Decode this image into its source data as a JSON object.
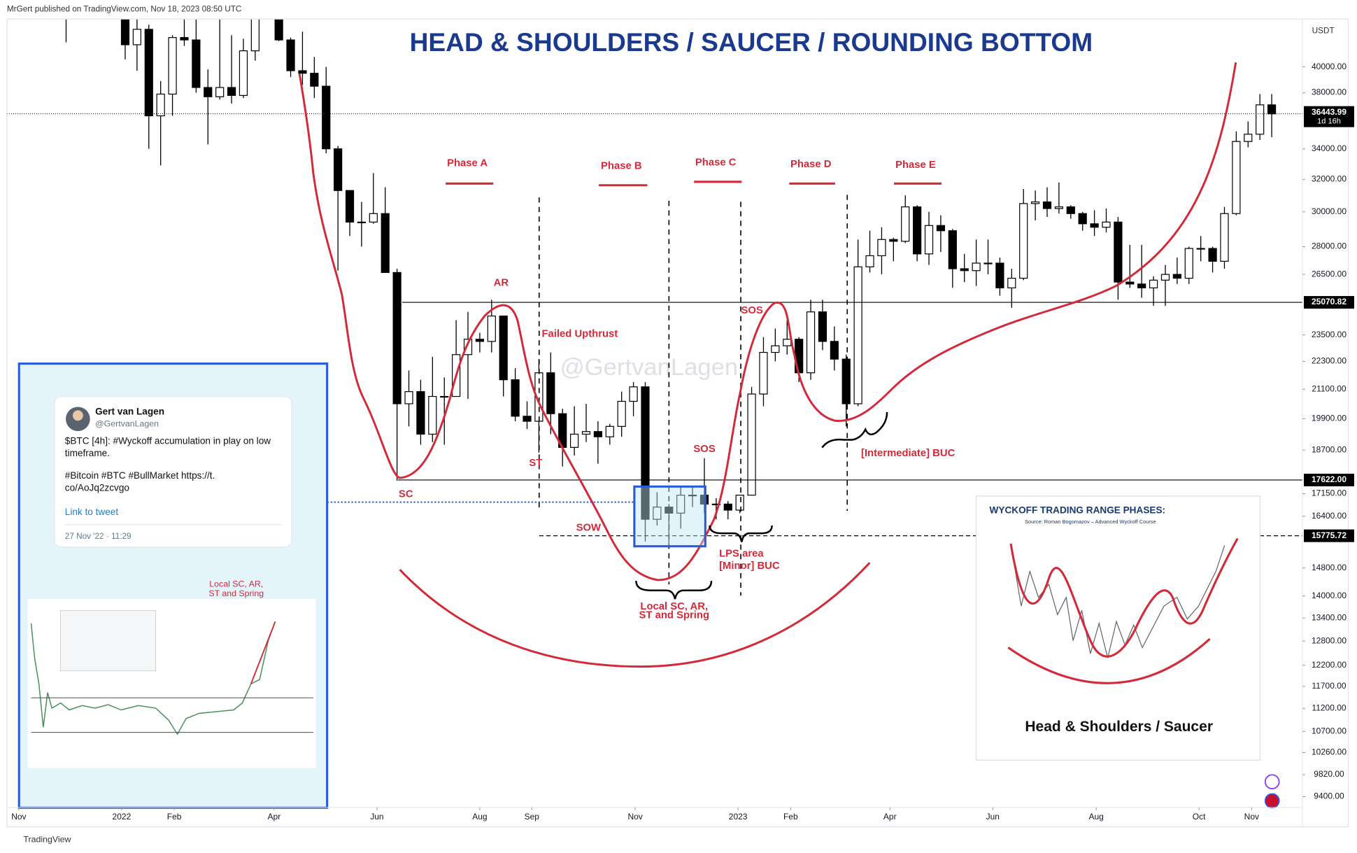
{
  "header": "MrGert published on TradingView.com, Nov 18, 2023 08:50 UTC",
  "footer": "TradingView",
  "chart_data": {
    "type": "candlestick",
    "title": "HEAD & SHOULDERS / SAUCER / ROUNDING BOTTOM",
    "currency": "USDT",
    "log_scale": true,
    "grid": false,
    "up_color": "#ffffff",
    "down_color": "#000000",
    "ylim": [
      9200,
      44000
    ],
    "yticks": [
      {
        "value": 40000,
        "label": "40000.00"
      },
      {
        "value": 38000,
        "label": "38000.00"
      },
      {
        "value": 34000,
        "label": "34000.00"
      },
      {
        "value": 32000,
        "label": "32000.00"
      },
      {
        "value": 30000,
        "label": "30000.00"
      },
      {
        "value": 28000,
        "label": "28000.00"
      },
      {
        "value": 26500,
        "label": "26500.00"
      },
      {
        "value": 23500,
        "label": "23500.00"
      },
      {
        "value": 22300,
        "label": "22300.00"
      },
      {
        "value": 21100,
        "label": "21100.00"
      },
      {
        "value": 19900,
        "label": "19900.00"
      },
      {
        "value": 18700,
        "label": "18700.00"
      },
      {
        "value": 17150,
        "label": "17150.00"
      },
      {
        "value": 16400,
        "label": "16400.00"
      },
      {
        "value": 14800,
        "label": "14800.00"
      },
      {
        "value": 14000,
        "label": "14000.00"
      },
      {
        "value": 13400,
        "label": "13400.00"
      },
      {
        "value": 12800,
        "label": "12800.00"
      },
      {
        "value": 12200,
        "label": "12200.00"
      },
      {
        "value": 11700,
        "label": "11700.00"
      },
      {
        "value": 11200,
        "label": "11200.00"
      },
      {
        "value": 10700,
        "label": "10700.00"
      },
      {
        "value": 10260,
        "label": "10260.00"
      },
      {
        "value": 9820,
        "label": "9820.00"
      },
      {
        "value": 9400,
        "label": "9400.00"
      }
    ],
    "xlim": [
      -5,
      104.6
    ],
    "xticks": [
      {
        "value": -4,
        "label": "Nov"
      },
      {
        "value": 4.7,
        "label": "2022"
      },
      {
        "value": 9.15,
        "label": "Feb"
      },
      {
        "value": 17.6,
        "label": "Apr"
      },
      {
        "value": 26.3,
        "label": "Jun"
      },
      {
        "value": 35,
        "label": "Aug"
      },
      {
        "value": 39.4,
        "label": "Sep"
      },
      {
        "value": 48.15,
        "label": "Nov"
      },
      {
        "value": 56.85,
        "label": "2023"
      },
      {
        "value": 61.3,
        "label": "Feb"
      },
      {
        "value": 69.7,
        "label": "Apr"
      },
      {
        "value": 78.4,
        "label": "Jun"
      },
      {
        "value": 87.15,
        "label": "Aug"
      },
      {
        "value": 95.85,
        "label": "Oct"
      },
      {
        "value": 100.3,
        "label": "Nov"
      }
    ],
    "categories": [
      null,
      null,
      null,
      null,
      null,
      null,
      null,
      null,
      null,
      null,
      null,
      null,
      null,
      null,
      null,
      null,
      null,
      null,
      null,
      null,
      null,
      null,
      null,
      null,
      null,
      null,
      null,
      null,
      null,
      null,
      null,
      null,
      null,
      null,
      null,
      null,
      null,
      null,
      null,
      null,
      null,
      null,
      null,
      null,
      null,
      null,
      null,
      null,
      null,
      null,
      null,
      null,
      null,
      null,
      null,
      null,
      null,
      null,
      null,
      null,
      null,
      null,
      null,
      null,
      null,
      null,
      null,
      null,
      null,
      null,
      null,
      null,
      null,
      null,
      null,
      null,
      null,
      null,
      null,
      null,
      null,
      null,
      null,
      null,
      null,
      null,
      null,
      null,
      null,
      null,
      null,
      null,
      null,
      null,
      null,
      null,
      null,
      null,
      null,
      null,
      null,
      null,
      null
    ],
    "open": [
      57000,
      49400,
      50100,
      46700,
      50800,
      46200,
      41800,
      43100,
      36300,
      37900,
      42400,
      42200,
      38400,
      37700,
      38400,
      37800,
      41300,
      44500,
      46400,
      42200,
      39700,
      39500,
      38500,
      34000,
      31300,
      29400,
      29400,
      29900,
      26600,
      20500,
      21000,
      19300,
      20800,
      20800,
      22600,
      23300,
      23200,
      24400,
      21500,
      20000,
      19800,
      21800,
      20100,
      18800,
      19300,
      19400,
      19200,
      19600,
      20600,
      21200,
      16300,
      16700,
      16500,
      17100,
      17100,
      16800,
      16800,
      16600,
      17100,
      20900,
      22700,
      23000,
      23300,
      21800,
      24600,
      23200,
      22400,
      20500,
      26900,
      27500,
      28400,
      28300,
      30300,
      27600,
      29200,
      28900,
      26800,
      26700,
      27100,
      27100,
      25800,
      26300,
      30500,
      30600,
      30200,
      30300,
      29900,
      29300,
      29100,
      29400,
      26100,
      26000,
      25800,
      26200,
      26500,
      26300,
      27900,
      27900,
      27200,
      29900,
      34500,
      35000,
      37100
    ],
    "high": [
      59000,
      51000,
      51000,
      51800,
      52100,
      47500,
      44400,
      43500,
      38900,
      42600,
      45800,
      44700,
      39800,
      45400,
      42600,
      42300,
      45000,
      48200,
      47200,
      42400,
      42900,
      40800,
      40000,
      34200,
      31300,
      30600,
      32400,
      31500,
      26800,
      21900,
      21500,
      22500,
      21600,
      24200,
      24600,
      23600,
      25200,
      24400,
      22000,
      20600,
      22400,
      22700,
      20300,
      20400,
      20500,
      19800,
      19700,
      21000,
      21400,
      21400,
      17200,
      16800,
      17400,
      17400,
      18400,
      17000,
      16900,
      17100,
      21200,
      23400,
      23800,
      24200,
      23400,
      25200,
      25200,
      23900,
      22600,
      28400,
      28900,
      29100,
      28500,
      31000,
      30400,
      30000,
      29800,
      29000,
      27600,
      28400,
      28400,
      27400,
      26800,
      31400,
      31300,
      31500,
      31800,
      30400,
      30000,
      30100,
      30200,
      29700,
      28100,
      28100,
      26400,
      27000,
      27400,
      28000,
      28600,
      28000,
      30300,
      35200,
      35900,
      37900,
      37900
    ],
    "low": [
      42000,
      47300,
      45500,
      45600,
      45700,
      40600,
      39700,
      34000,
      32900,
      36300,
      41700,
      38000,
      34300,
      37500,
      37200,
      37600,
      40500,
      44400,
      42100,
      39200,
      38600,
      37600,
      33700,
      26700,
      28600,
      28000,
      29300,
      26600,
      17600,
      19600,
      18900,
      19000,
      18900,
      20800,
      20700,
      22700,
      22700,
      20800,
      19800,
      19500,
      18600,
      19300,
      18100,
      18500,
      19000,
      18200,
      18900,
      19200,
      20000,
      15600,
      16100,
      15500,
      16000,
      16700,
      16500,
      16300,
      16300,
      16500,
      17100,
      20400,
      22300,
      22600,
      21400,
      21500,
      22800,
      21900,
      19600,
      20400,
      26600,
      26500,
      27200,
      28200,
      27200,
      27000,
      27700,
      25800,
      26100,
      25900,
      26500,
      25400,
      24800,
      26200,
      29500,
      29700,
      29900,
      29600,
      28900,
      28600,
      28800,
      25200,
      25800,
      25300,
      24900,
      24900,
      26000,
      26000,
      27200,
      26600,
      26800,
      29800,
      34100,
      34600,
      34800
    ],
    "close": [
      49400,
      50100,
      46700,
      50800,
      46200,
      41800,
      43100,
      36300,
      37900,
      42400,
      42200,
      38400,
      37700,
      38400,
      37800,
      41300,
      44500,
      46400,
      42200,
      39700,
      39500,
      38500,
      34000,
      31300,
      29400,
      29400,
      29900,
      26600,
      20500,
      21000,
      19300,
      20800,
      20800,
      22600,
      23300,
      23200,
      24400,
      21500,
      20000,
      19800,
      21800,
      20100,
      18800,
      19300,
      19400,
      19200,
      19600,
      20600,
      21200,
      16300,
      16700,
      16500,
      17100,
      17100,
      16800,
      16800,
      16600,
      17100,
      20900,
      22700,
      23000,
      23300,
      21800,
      24600,
      23200,
      22400,
      20500,
      26900,
      27500,
      28400,
      28300,
      30300,
      27600,
      29200,
      28900,
      26800,
      26700,
      27100,
      27100,
      25800,
      26300,
      30500,
      30600,
      30200,
      30300,
      29900,
      29300,
      29100,
      29400,
      26100,
      26000,
      25800,
      26200,
      26500,
      26300,
      27900,
      27900,
      27200,
      29900,
      34500,
      35000,
      37100,
      36443.99
    ],
    "countdown": "1d 16h",
    "price_lines": [
      {
        "value": 25070.82,
        "style": "solid"
      },
      {
        "value": 17622,
        "label": "17622.00",
        "style": "solid"
      },
      {
        "value": 15775.72,
        "style": "dashed"
      }
    ],
    "phases": [
      "Phase A",
      "Phase B",
      "Phase C",
      "Phase D",
      "Phase E"
    ],
    "annotations": [
      "AR",
      "Failed Upthrust",
      "ST",
      "SC",
      "SOW",
      "SOS",
      "SOS",
      "LPS area",
      "[Minor] BUC",
      "Local SC, AR,",
      "ST and Spring",
      "[Intermediate] BUC"
    ],
    "watermark": "@GertvanLagen"
  },
  "tweet": {
    "name": "Gert van Lagen",
    "handle": "@GertvanLagen",
    "lines": [
      "$BTC [4h]: #Wyckoff accumulation in play on low",
      "timeframe.",
      "#Bitcoin #BTC #BullMarket https://t.",
      "co/AoJq2zcvgo"
    ],
    "link": "Link to tweet",
    "date": "27 Nov '22 · 11:29"
  },
  "inset_left": {
    "labels": [
      "Local SC, AR,",
      "ST and Spring"
    ]
  },
  "inset_right": {
    "title": "WYCKOFF TRADING RANGE PHASES:",
    "source": "Source: Roman Bogomazov – Advanced Wyckoff Course",
    "caption": "Head & Shoulders / Saucer"
  }
}
